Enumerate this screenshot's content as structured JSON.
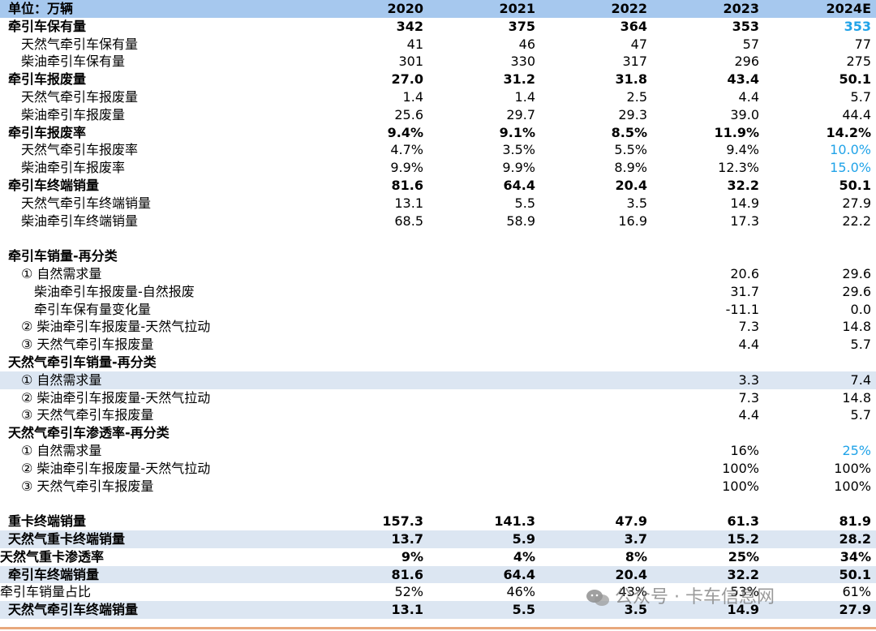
{
  "header": [
    "单位：万辆",
    "2020",
    "2021",
    "2022",
    "2023",
    "2024E"
  ],
  "colors": {
    "header_bg": "#a6c8ee",
    "shaded_bg": "#dce6f2",
    "highlight": "#21a3e8"
  },
  "rows": [
    {
      "label": "牵引车保有量",
      "values": [
        "342",
        "375",
        "364",
        "353",
        "353"
      ],
      "style": "bold",
      "blue": [
        4
      ]
    },
    {
      "label": "天然气牵引车保有量",
      "values": [
        "41",
        "46",
        "47",
        "57",
        "77"
      ],
      "indent": 1
    },
    {
      "label": "柴油牵引车保有量",
      "values": [
        "301",
        "330",
        "317",
        "296",
        "275"
      ],
      "indent": 1
    },
    {
      "label": "牵引车报废量",
      "values": [
        "27.0",
        "31.2",
        "31.8",
        "43.4",
        "50.1"
      ],
      "style": "bold"
    },
    {
      "label": "天然气牵引车报废量",
      "values": [
        "1.4",
        "1.4",
        "2.5",
        "4.4",
        "5.7"
      ],
      "indent": 1
    },
    {
      "label": "柴油牵引车报废量",
      "values": [
        "25.6",
        "29.7",
        "29.3",
        "39.0",
        "44.4"
      ],
      "indent": 1
    },
    {
      "label": "牵引车报废率",
      "values": [
        "9.4%",
        "9.1%",
        "8.5%",
        "11.9%",
        "14.2%"
      ],
      "style": "bold"
    },
    {
      "label": "天然气牵引车报废率",
      "values": [
        "4.7%",
        "3.5%",
        "5.5%",
        "9.4%",
        "10.0%"
      ],
      "indent": 1,
      "blue": [
        4
      ]
    },
    {
      "label": "柴油牵引车报废率",
      "values": [
        "9.9%",
        "9.9%",
        "8.9%",
        "12.3%",
        "15.0%"
      ],
      "indent": 1,
      "blue": [
        4
      ]
    },
    {
      "label": "牵引车终端销量",
      "values": [
        "81.6",
        "64.4",
        "20.4",
        "32.2",
        "50.1"
      ],
      "style": "bold"
    },
    {
      "label": "天然气牵引车终端销量",
      "values": [
        "13.1",
        "5.5",
        "3.5",
        "14.9",
        "27.9"
      ],
      "indent": 1
    },
    {
      "label": "柴油牵引车终端销量",
      "values": [
        "68.5",
        "58.9",
        "16.9",
        "17.3",
        "22.2"
      ],
      "indent": 1
    },
    {
      "label": "",
      "values": [
        "",
        "",
        "",
        "",
        ""
      ],
      "style": "spacer"
    },
    {
      "label": "牵引车销量-再分类",
      "values": [
        "",
        "",
        "",
        "",
        ""
      ],
      "style": "bold"
    },
    {
      "label": "① 自然需求量",
      "values": [
        "",
        "",
        "",
        "20.6",
        "29.6"
      ],
      "indent": 1
    },
    {
      "label": "柴油牵引车报废量-自然报废",
      "values": [
        "",
        "",
        "",
        "31.7",
        "29.6"
      ],
      "indent": 2
    },
    {
      "label": "牵引车保有量变化量",
      "values": [
        "",
        "",
        "",
        "-11.1",
        "0.0"
      ],
      "indent": 2
    },
    {
      "label": "② 柴油牵引车报废量-天然气拉动",
      "values": [
        "",
        "",
        "",
        "7.3",
        "14.8"
      ],
      "indent": 1
    },
    {
      "label": "③ 天然气牵引车报废量",
      "values": [
        "",
        "",
        "",
        "4.4",
        "5.7"
      ],
      "indent": 1
    },
    {
      "label": "天然气牵引车销量-再分类",
      "values": [
        "",
        "",
        "",
        "",
        ""
      ],
      "style": "bold"
    },
    {
      "label": "① 自然需求量",
      "values": [
        "",
        "",
        "",
        "3.3",
        "7.4"
      ],
      "indent": 1,
      "shaded": true
    },
    {
      "label": "② 柴油牵引车报废量-天然气拉动",
      "values": [
        "",
        "",
        "",
        "7.3",
        "14.8"
      ],
      "indent": 1
    },
    {
      "label": "③ 天然气牵引车报废量",
      "values": [
        "",
        "",
        "",
        "4.4",
        "5.7"
      ],
      "indent": 1
    },
    {
      "label": "天然气牵引车渗透率-再分类",
      "values": [
        "",
        "",
        "",
        "",
        ""
      ],
      "style": "bold"
    },
    {
      "label": "① 自然需求量",
      "values": [
        "",
        "",
        "",
        "16%",
        "25%"
      ],
      "indent": 1,
      "blue": [
        4
      ]
    },
    {
      "label": "② 柴油牵引车报废量-天然气拉动",
      "values": [
        "",
        "",
        "",
        "100%",
        "100%"
      ],
      "indent": 1
    },
    {
      "label": "③ 天然气牵引车报废量",
      "values": [
        "",
        "",
        "",
        "100%",
        "100%"
      ],
      "indent": 1
    },
    {
      "label": "",
      "values": [
        "",
        "",
        "",
        "",
        ""
      ],
      "style": "spacer"
    },
    {
      "label": "重卡终端销量",
      "values": [
        "157.3",
        "141.3",
        "47.9",
        "61.3",
        "81.9"
      ],
      "style": "bold"
    },
    {
      "label": "天然气重卡终端销量",
      "values": [
        "13.7",
        "5.9",
        "3.7",
        "15.2",
        "28.2"
      ],
      "style": "bold",
      "shaded": true
    },
    {
      "label": "天然气重卡渗透率",
      "values": [
        "9%",
        "4%",
        "8%",
        "25%",
        "34%"
      ],
      "style": "bold",
      "align": "right"
    },
    {
      "label": "牵引车终端销量",
      "values": [
        "81.6",
        "64.4",
        "20.4",
        "32.2",
        "50.1"
      ],
      "style": "bold",
      "shaded": true
    },
    {
      "label": "牵引车销量占比",
      "values": [
        "52%",
        "46%",
        "43%",
        "53%",
        "61%"
      ],
      "align": "right"
    },
    {
      "label": "天然气牵引车终端销量",
      "values": [
        "13.1",
        "5.5",
        "3.5",
        "14.9",
        "27.9"
      ],
      "style": "bold",
      "shaded": true
    }
  ],
  "watermark": {
    "icon": "wechat-icon",
    "text": "公众号 · 卡车信息网"
  }
}
